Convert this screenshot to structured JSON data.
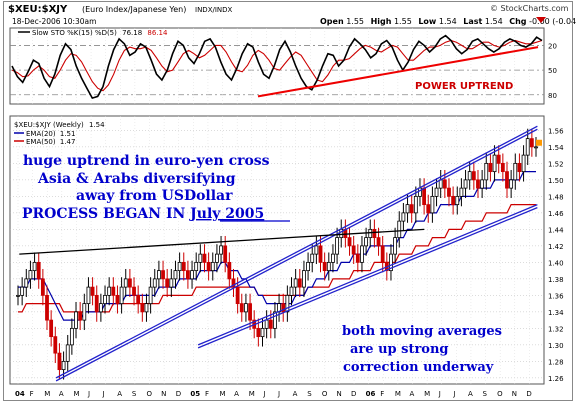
{
  "chart_data": {
    "type": "ohlc",
    "header": {
      "symbol": "$XEU:$XJY",
      "desc": "(Euro Index/Japanese Yen)",
      "exch": "INDX/INDX",
      "date": "18-Dec-2006 10:30am",
      "open_label": "Open",
      "open": "1.55",
      "high_label": "High",
      "high": "1.55",
      "low_label": "Low",
      "low": "1.54",
      "last_label": "Last",
      "last": "1.54",
      "chg_label": "Chg",
      "chg": "-0.00 (-0.04%)",
      "watermark": "© StockCharts.com"
    },
    "sto_panel": {
      "legend_name": "Slow STO %K(15) %D(5)",
      "k_value": "76.18",
      "d_value": "86.14",
      "ylim": [
        10,
        100
      ],
      "levels": [
        20,
        50,
        80
      ],
      "tick_labels": [
        "80",
        "50",
        "20"
      ],
      "annotation": "POWER UPTREND",
      "k_series": [
        55,
        42,
        35,
        48,
        62,
        58,
        40,
        30,
        45,
        68,
        82,
        75,
        55,
        40,
        28,
        16,
        18,
        30,
        55,
        75,
        88,
        82,
        68,
        72,
        82,
        78,
        62,
        45,
        38,
        50,
        70,
        85,
        80,
        65,
        58,
        70,
        85,
        88,
        78,
        60,
        45,
        38,
        52,
        70,
        82,
        78,
        60,
        45,
        40,
        55,
        75,
        85,
        72,
        55,
        40,
        30,
        26,
        38,
        55,
        70,
        68,
        55,
        62,
        78,
        88,
        82,
        75,
        65,
        70,
        82,
        86,
        78,
        62,
        50,
        60,
        75,
        85,
        80,
        72,
        78,
        88,
        92,
        86,
        76,
        70,
        75,
        85,
        88,
        82,
        76,
        72,
        76,
        84,
        88,
        85,
        80,
        78,
        82,
        90,
        86
      ],
      "d_series": [
        50,
        47,
        42,
        43,
        50,
        55,
        50,
        42,
        40,
        50,
        62,
        70,
        68,
        60,
        48,
        36,
        28,
        25,
        32,
        45,
        62,
        74,
        78,
        76,
        76,
        78,
        74,
        65,
        55,
        48,
        50,
        60,
        70,
        74,
        70,
        65,
        68,
        74,
        80,
        80,
        72,
        60,
        50,
        48,
        56,
        68,
        74,
        70,
        62,
        52,
        50,
        58,
        66,
        72,
        68,
        58,
        48,
        38,
        36,
        44,
        55,
        62,
        62,
        64,
        70,
        76,
        80,
        78,
        74,
        72,
        76,
        80,
        78,
        70,
        62,
        62,
        68,
        74,
        78,
        78,
        80,
        84,
        86,
        84,
        80,
        76,
        76,
        80,
        84,
        84,
        80,
        78,
        80,
        84,
        86,
        84,
        82,
        82,
        84,
        86
      ]
    },
    "price_panel": {
      "legend_symbol": "$XEU:$XJY (Weekly)",
      "legend_value": "1.54",
      "ema20_label": "EMA(20)",
      "ema20_value": "1.51",
      "ema50_label": "EMA(50)",
      "ema50_value": "1.47",
      "ylim": [
        1.255,
        1.575
      ],
      "y_ticks": [
        "1.56",
        "1.54",
        "1.52",
        "1.50",
        "1.48",
        "1.46",
        "1.44",
        "1.42",
        "1.40",
        "1.38",
        "1.36",
        "1.34",
        "1.32",
        "1.30",
        "1.28",
        "1.26"
      ],
      "annotations": {
        "line1": "huge uptrend in euro-yen cross",
        "line2": "Asia & Arabs diversifying",
        "line3": "away from USDollar",
        "line4a": "PROCESS BEGAN IN ",
        "line4b": "July 2005",
        "bottom1": "both moving averages",
        "bottom2": "are up strong",
        "bottom3": "correction underway"
      }
    },
    "x_axis": {
      "labels": [
        "04",
        "F",
        "M",
        "A",
        "M",
        "J",
        "J",
        "A",
        "S",
        "O",
        "N",
        "D",
        "05",
        "F",
        "M",
        "A",
        "M",
        "J",
        "J",
        "A",
        "S",
        "O",
        "N",
        "D",
        "06",
        "F",
        "M",
        "A",
        "M",
        "J",
        "J",
        "A",
        "S",
        "O",
        "N",
        "D"
      ],
      "bold_labels": [
        "04",
        "05",
        "06"
      ]
    },
    "weekly_closes": [
      1.36,
      1.37,
      1.38,
      1.39,
      1.4,
      1.38,
      1.36,
      1.33,
      1.31,
      1.29,
      1.27,
      1.28,
      1.3,
      1.32,
      1.34,
      1.33,
      1.35,
      1.37,
      1.36,
      1.34,
      1.35,
      1.36,
      1.37,
      1.36,
      1.35,
      1.37,
      1.38,
      1.37,
      1.36,
      1.35,
      1.34,
      1.35,
      1.37,
      1.38,
      1.39,
      1.38,
      1.37,
      1.38,
      1.39,
      1.4,
      1.39,
      1.38,
      1.39,
      1.4,
      1.41,
      1.4,
      1.39,
      1.4,
      1.41,
      1.42,
      1.4,
      1.38,
      1.37,
      1.35,
      1.34,
      1.35,
      1.33,
      1.32,
      1.31,
      1.32,
      1.33,
      1.32,
      1.34,
      1.35,
      1.34,
      1.36,
      1.37,
      1.38,
      1.37,
      1.39,
      1.4,
      1.41,
      1.42,
      1.4,
      1.39,
      1.4,
      1.41,
      1.43,
      1.44,
      1.43,
      1.42,
      1.41,
      1.4,
      1.42,
      1.43,
      1.44,
      1.43,
      1.42,
      1.4,
      1.39,
      1.41,
      1.43,
      1.45,
      1.46,
      1.47,
      1.46,
      1.48,
      1.49,
      1.47,
      1.46,
      1.48,
      1.49,
      1.5,
      1.49,
      1.48,
      1.47,
      1.48,
      1.49,
      1.5,
      1.51,
      1.5,
      1.49,
      1.5,
      1.52,
      1.51,
      1.53,
      1.52,
      1.51,
      1.49,
      1.5,
      1.52,
      1.51,
      1.53,
      1.55,
      1.54,
      1.54
    ],
    "ema20": [
      1.37,
      1.37,
      1.37,
      1.38,
      1.38,
      1.38,
      1.38,
      1.37,
      1.36,
      1.35,
      1.34,
      1.33,
      1.33,
      1.33,
      1.33,
      1.33,
      1.34,
      1.34,
      1.34,
      1.34,
      1.34,
      1.35,
      1.35,
      1.35,
      1.35,
      1.35,
      1.36,
      1.36,
      1.36,
      1.36,
      1.36,
      1.36,
      1.36,
      1.36,
      1.37,
      1.37,
      1.37,
      1.37,
      1.37,
      1.38,
      1.38,
      1.38,
      1.38,
      1.38,
      1.39,
      1.39,
      1.39,
      1.39,
      1.39,
      1.4,
      1.4,
      1.39,
      1.39,
      1.39,
      1.38,
      1.38,
      1.37,
      1.37,
      1.36,
      1.36,
      1.35,
      1.35,
      1.35,
      1.35,
      1.35,
      1.35,
      1.35,
      1.36,
      1.36,
      1.36,
      1.37,
      1.37,
      1.38,
      1.38,
      1.38,
      1.39,
      1.39,
      1.39,
      1.4,
      1.4,
      1.4,
      1.41,
      1.41,
      1.41,
      1.41,
      1.42,
      1.42,
      1.42,
      1.42,
      1.42,
      1.42,
      1.42,
      1.43,
      1.43,
      1.44,
      1.44,
      1.45,
      1.45,
      1.45,
      1.46,
      1.46,
      1.46,
      1.47,
      1.47,
      1.47,
      1.47,
      1.47,
      1.48,
      1.48,
      1.48,
      1.48,
      1.49,
      1.49,
      1.49,
      1.49,
      1.5,
      1.5,
      1.5,
      1.5,
      1.5,
      1.5,
      1.5,
      1.51,
      1.51,
      1.51,
      1.51
    ],
    "ema50": [
      1.34,
      1.34,
      1.35,
      1.35,
      1.35,
      1.35,
      1.35,
      1.35,
      1.35,
      1.35,
      1.35,
      1.34,
      1.34,
      1.34,
      1.34,
      1.34,
      1.34,
      1.34,
      1.34,
      1.34,
      1.34,
      1.34,
      1.34,
      1.35,
      1.35,
      1.35,
      1.35,
      1.35,
      1.35,
      1.35,
      1.35,
      1.35,
      1.35,
      1.35,
      1.35,
      1.36,
      1.36,
      1.36,
      1.36,
      1.36,
      1.36,
      1.36,
      1.36,
      1.37,
      1.37,
      1.37,
      1.37,
      1.37,
      1.37,
      1.37,
      1.37,
      1.37,
      1.37,
      1.37,
      1.37,
      1.37,
      1.37,
      1.37,
      1.36,
      1.36,
      1.36,
      1.36,
      1.36,
      1.36,
      1.36,
      1.36,
      1.36,
      1.36,
      1.36,
      1.36,
      1.37,
      1.37,
      1.37,
      1.37,
      1.37,
      1.37,
      1.38,
      1.38,
      1.38,
      1.38,
      1.38,
      1.39,
      1.39,
      1.39,
      1.39,
      1.39,
      1.4,
      1.4,
      1.4,
      1.4,
      1.4,
      1.4,
      1.41,
      1.41,
      1.41,
      1.41,
      1.42,
      1.42,
      1.42,
      1.42,
      1.43,
      1.43,
      1.43,
      1.43,
      1.44,
      1.44,
      1.44,
      1.44,
      1.45,
      1.45,
      1.45,
      1.45,
      1.45,
      1.46,
      1.46,
      1.46,
      1.46,
      1.46,
      1.46,
      1.47,
      1.47,
      1.47,
      1.47,
      1.47,
      1.47,
      1.47
    ],
    "trendlines": [
      {
        "name": "upper-channel",
        "from": [
          0.08,
          1.26
        ],
        "to": [
          0.995,
          1.565
        ]
      },
      {
        "name": "lower-channel",
        "from": [
          0.35,
          1.3
        ],
        "to": [
          0.995,
          1.47
        ]
      },
      {
        "name": "horizontal-resistance",
        "from": [
          0.01,
          1.41
        ],
        "to": [
          0.78,
          1.44
        ]
      }
    ]
  }
}
